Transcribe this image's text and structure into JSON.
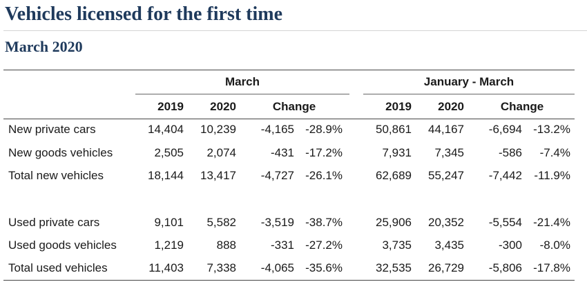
{
  "title": "Vehicles licensed for the first time",
  "subtitle": "March 2020",
  "table": {
    "group_headers": [
      "March",
      "January - March"
    ],
    "column_headers": [
      "2019",
      "2020",
      "Change",
      "2019",
      "2020",
      "Change"
    ],
    "rows": [
      {
        "label": "New private cars",
        "values": [
          "14,404",
          "10,239",
          "-4,165",
          "-28.9%",
          "50,861",
          "44,167",
          "-6,694",
          "-13.2%"
        ]
      },
      {
        "label": "New goods vehicles",
        "values": [
          "2,505",
          "2,074",
          "-431",
          "-17.2%",
          "7,931",
          "7,345",
          "-586",
          "-7.4%"
        ]
      },
      {
        "label": "Total new vehicles",
        "values": [
          "18,144",
          "13,417",
          "-4,727",
          "-26.1%",
          "62,689",
          "55,247",
          "-7,442",
          "-11.9%"
        ]
      },
      {
        "label": "Used private cars",
        "values": [
          "9,101",
          "5,582",
          "-3,519",
          "-38.7%",
          "25,906",
          "20,352",
          "-5,554",
          "-21.4%"
        ]
      },
      {
        "label": "Used goods vehicles",
        "values": [
          "1,219",
          "888",
          "-331",
          "-27.2%",
          "3,735",
          "3,435",
          "-300",
          "-8.0%"
        ]
      },
      {
        "label": "Total used vehicles",
        "values": [
          "11,403",
          "7,338",
          "-4,065",
          "-35.6%",
          "32,535",
          "26,729",
          "-5,806",
          "-17.8%"
        ]
      }
    ]
  }
}
